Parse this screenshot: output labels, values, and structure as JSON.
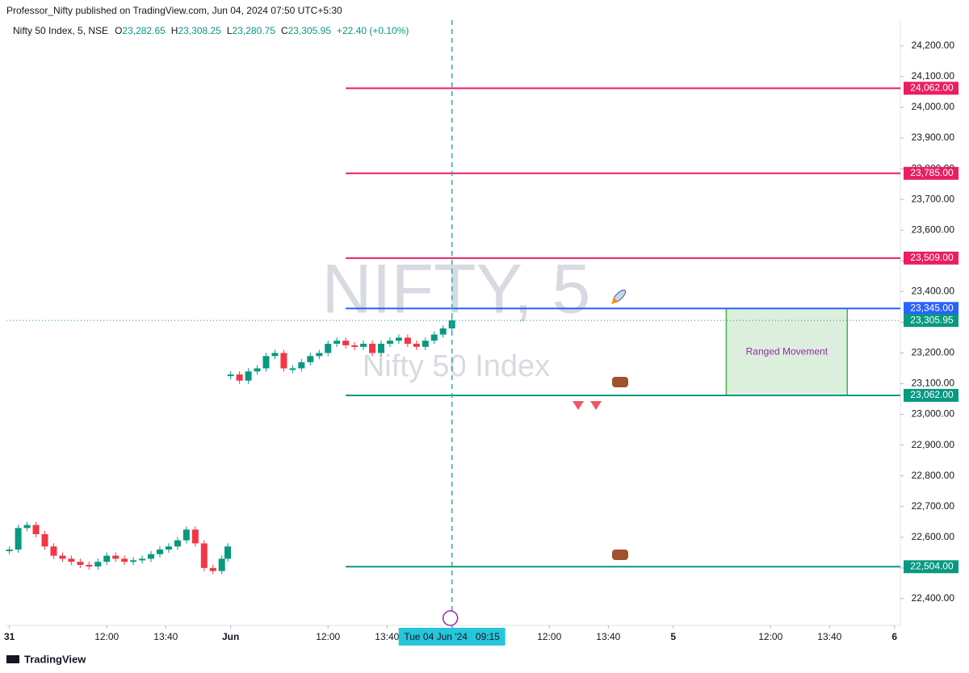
{
  "header": {
    "publisher": "Professor_Nifty published on TradingView.com, Jun 04, 2024 07:50 UTC+5:30",
    "symbol": "Nifty 50 Index, 5, NSE",
    "ohlc": [
      {
        "key": "O",
        "value": "23,282.65"
      },
      {
        "key": "H",
        "value": "23,308.25"
      },
      {
        "key": "L",
        "value": "23,280.75"
      },
      {
        "key": "C",
        "value": "23,305.95"
      }
    ],
    "change": "+22.40 (+0.10%)",
    "watermark": "NIFTY, 5",
    "watermark_sub": "Nifty 50 Index",
    "brand": "TradingView"
  },
  "chart_data": {
    "type": "candlestick",
    "series": [
      {
        "x": [
          -75,
          -72,
          -69,
          -66,
          -63,
          -60,
          -57,
          -54,
          -51,
          -48,
          -45,
          -42,
          -39,
          -36,
          -33,
          -30,
          -27,
          -24,
          -21,
          -18,
          -15,
          -12,
          -9,
          -6,
          -3,
          -1
        ],
        "values": [
          22560,
          22630,
          22640,
          22610,
          22570,
          22540,
          22530,
          22520,
          22510,
          22505,
          22520,
          22540,
          22530,
          22520,
          22525,
          22530,
          22545,
          22560,
          22570,
          22590,
          22625,
          22580,
          22500,
          22490,
          22530,
          22570
        ]
      },
      {
        "x": [
          0,
          3,
          6,
          9,
          12,
          15,
          18,
          21,
          24,
          27,
          30,
          33,
          36,
          39,
          42,
          45,
          48,
          51,
          54,
          57,
          60,
          63,
          66,
          69,
          72,
          75
        ],
        "values": [
          23130,
          23110,
          23140,
          23150,
          23190,
          23200,
          23150,
          23150,
          23170,
          23190,
          23200,
          23230,
          23240,
          23225,
          23220,
          23230,
          23200,
          23230,
          23240,
          23250,
          23230,
          23220,
          23240,
          23260,
          23280,
          23305.95
        ]
      }
    ],
    "up_color": "#089981",
    "down_color": "#f23645",
    "xlim": [
      -76,
      227
    ],
    "ylim": [
      22313,
      24218
    ],
    "xticks": [
      {
        "value": -75,
        "label": "31"
      },
      {
        "value": -42,
        "label": "12:00"
      },
      {
        "value": -22,
        "label": "13:40"
      },
      {
        "value": 0,
        "label": "Jun"
      },
      {
        "value": 33,
        "label": "12:00"
      },
      {
        "value": 53,
        "label": "13:40"
      },
      {
        "value": 108,
        "label": "12:00"
      },
      {
        "value": 128,
        "label": "13:40"
      },
      {
        "value": 150,
        "label": "5"
      },
      {
        "value": 183,
        "label": "12:00"
      },
      {
        "value": 203,
        "label": "13:40"
      },
      {
        "value": 225,
        "label": "6"
      }
    ],
    "yticks": [
      {
        "value": 22400,
        "label": "22,400.00"
      },
      {
        "value": 22500,
        "label": "22,500.00"
      },
      {
        "value": 22600,
        "label": "22,600.00"
      },
      {
        "value": 22700,
        "label": "22,700.00"
      },
      {
        "value": 22800,
        "label": "22,800.00"
      },
      {
        "value": 22900,
        "label": "22,900.00"
      },
      {
        "value": 23000,
        "label": "23,000.00"
      },
      {
        "value": 23100,
        "label": "23,100.00"
      },
      {
        "value": 23200,
        "label": "23,200.00"
      },
      {
        "value": 23300,
        "label": "23,300.00"
      },
      {
        "value": 23400,
        "label": "23,400.00"
      },
      {
        "value": 23500,
        "label": "23,500.00"
      },
      {
        "value": 23600,
        "label": "23,600.00"
      },
      {
        "value": 23700,
        "label": "23,700.00"
      },
      {
        "value": 23800,
        "label": "23,800.00"
      },
      {
        "value": 23900,
        "label": "23,900.00"
      },
      {
        "value": 24000,
        "label": "24,000.00"
      },
      {
        "value": 24100,
        "label": "24,100.00"
      },
      {
        "value": 24200,
        "label": "24,200.00"
      }
    ],
    "levels_from": 39,
    "levels": [
      {
        "value": 24062,
        "label": "24,062.00",
        "color": "#e91e63"
      },
      {
        "value": 23785,
        "label": "23,785.00",
        "color": "#e91e63"
      },
      {
        "value": 23509,
        "label": "23,509.00",
        "color": "#e91e63"
      },
      {
        "value": 23345,
        "label": "23,345.00",
        "color": "#2962ff"
      },
      {
        "value": 23062,
        "label": "23,062.00",
        "color": "#089981"
      },
      {
        "value": 22504,
        "label": "22,504.00",
        "color": "#089981"
      }
    ],
    "last_price": {
      "value": 23305.95,
      "label": "23,305.95",
      "color": "#089981"
    },
    "range_box": {
      "x": [
        168,
        209
      ],
      "y": [
        23062,
        23345
      ],
      "label": "Ranged Movement"
    },
    "crosshair": {
      "x": 75,
      "label": "Tue 04 Jun '24   09:15"
    }
  }
}
